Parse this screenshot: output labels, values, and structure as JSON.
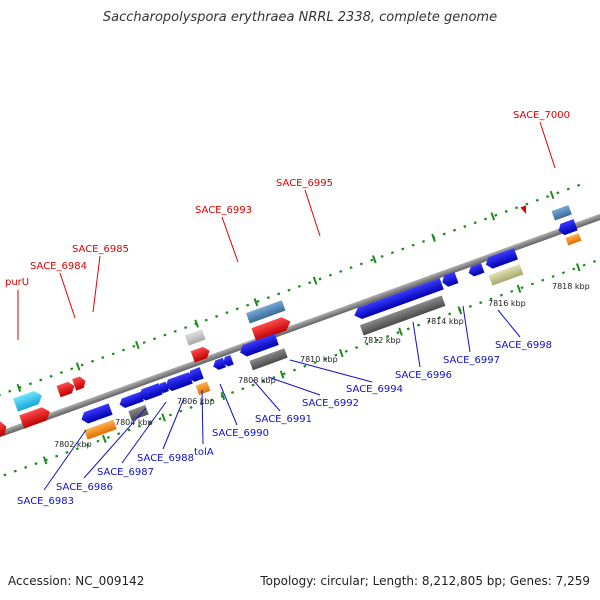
{
  "title": "Saccharopolyspora erythraea NRRL 2338, complete genome",
  "footer": {
    "accession": "Accession: NC_009142",
    "summary": "Topology: circular; Length: 8,212,805 bp; Genes: 7,259"
  },
  "colors": {
    "forward_label": "#e00000",
    "reverse_label": "#1010c8",
    "backbone": "#8a8a8a",
    "tick": "#1a8a1a"
  },
  "scale_labels": [
    "7802 kbp",
    "7804 kbp",
    "7806 kbp",
    "7808 kbp",
    "7810 kbp",
    "7812 kbp",
    "7814 kbp",
    "7816 kbp",
    "7818 kbp"
  ],
  "forward_labels": [
    "purU",
    "SACE_6984",
    "SACE_6985",
    "SACE_6993",
    "SACE_6995",
    "SACE_7000"
  ],
  "reverse_labels": [
    "SACE_6983",
    "SACE_6986",
    "SACE_6987",
    "SACE_6988",
    "tolA",
    "SACE_6990",
    "SACE_6991",
    "SACE_6992",
    "SACE_6994",
    "SACE_6996",
    "SACE_6997",
    "SACE_6998"
  ]
}
